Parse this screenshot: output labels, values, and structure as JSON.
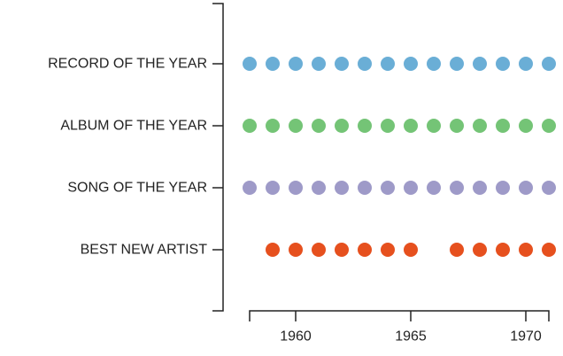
{
  "chart_data": {
    "type": "scatter",
    "title": "",
    "xlabel": "",
    "ylabel": "",
    "xlim": [
      1958,
      1971
    ],
    "x_ticks": [
      1960,
      1965,
      1970
    ],
    "x_tick_labels": [
      "1960",
      "1965",
      "1970"
    ],
    "grid": false,
    "categories": [
      "RECORD OF THE YEAR",
      "ALBUM OF THE YEAR",
      "SONG OF THE YEAR",
      "BEST NEW ARTIST"
    ],
    "series": [
      {
        "category": "RECORD OF THE YEAR",
        "color": "#6aaed6",
        "years": [
          1958,
          1959,
          1960,
          1961,
          1962,
          1963,
          1964,
          1965,
          1966,
          1967,
          1968,
          1969,
          1970,
          1971
        ]
      },
      {
        "category": "ALBUM OF THE YEAR",
        "color": "#74c476",
        "years": [
          1958,
          1959,
          1960,
          1961,
          1962,
          1963,
          1964,
          1965,
          1966,
          1967,
          1968,
          1969,
          1970,
          1971
        ]
      },
      {
        "category": "SONG OF THE YEAR",
        "color": "#9e9ac8",
        "years": [
          1958,
          1959,
          1960,
          1961,
          1962,
          1963,
          1964,
          1965,
          1966,
          1967,
          1968,
          1969,
          1970,
          1971
        ]
      },
      {
        "category": "BEST NEW ARTIST",
        "color": "#e6501e",
        "years": [
          1959,
          1960,
          1961,
          1962,
          1963,
          1964,
          1965,
          1967,
          1968,
          1969,
          1970,
          1971
        ]
      }
    ]
  }
}
